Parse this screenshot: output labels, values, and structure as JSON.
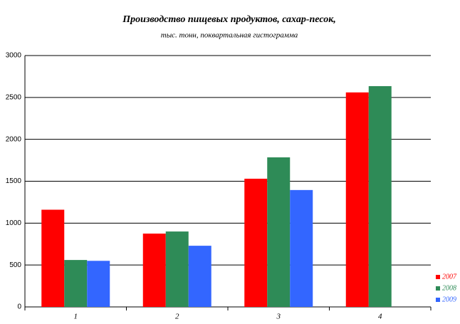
{
  "chart_data": {
    "type": "bar",
    "title": "Производство пищевых продуктов, сахар-песок,",
    "subtitle": "тыс. тонн, поквартальная гистограмма",
    "categories": [
      "1",
      "2",
      "3",
      "4"
    ],
    "series": [
      {
        "name": "2007",
        "color": "#ff0000",
        "values": [
          1160,
          875,
          1530,
          2560
        ]
      },
      {
        "name": "2008",
        "color": "#2e8b57",
        "values": [
          560,
          900,
          1785,
          2635
        ]
      },
      {
        "name": "2009",
        "color": "#3366ff",
        "values": [
          550,
          730,
          1395,
          null
        ]
      }
    ],
    "ylim": [
      0,
      3000
    ],
    "yticks": [
      0,
      500,
      1000,
      1500,
      2000,
      2500,
      3000
    ],
    "grid": true
  }
}
